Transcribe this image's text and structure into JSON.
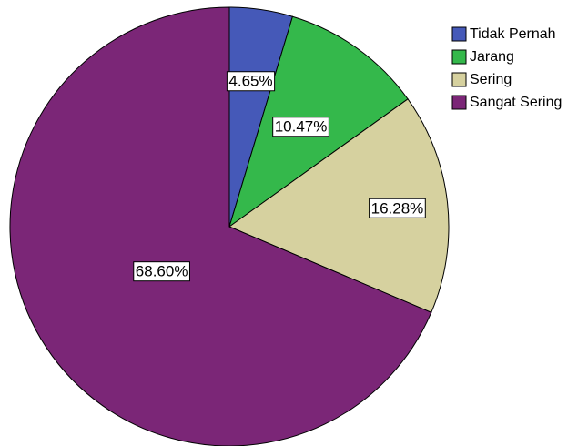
{
  "chart_data": {
    "type": "pie",
    "slices": [
      {
        "label": "Tidak Pernah",
        "value": 4.65,
        "display": "4.65%",
        "color": "#4559b8"
      },
      {
        "label": "Jarang",
        "value": 10.47,
        "display": "10.47%",
        "color": "#34b84b"
      },
      {
        "label": "Sering",
        "value": 16.28,
        "display": "16.28%",
        "color": "#d6d19f"
      },
      {
        "label": "Sangat Sering",
        "value": 68.6,
        "display": "68.60%",
        "color": "#7b2677"
      }
    ],
    "start_angle": "12 o'clock",
    "direction": "clockwise",
    "legend_position": "top-right"
  }
}
